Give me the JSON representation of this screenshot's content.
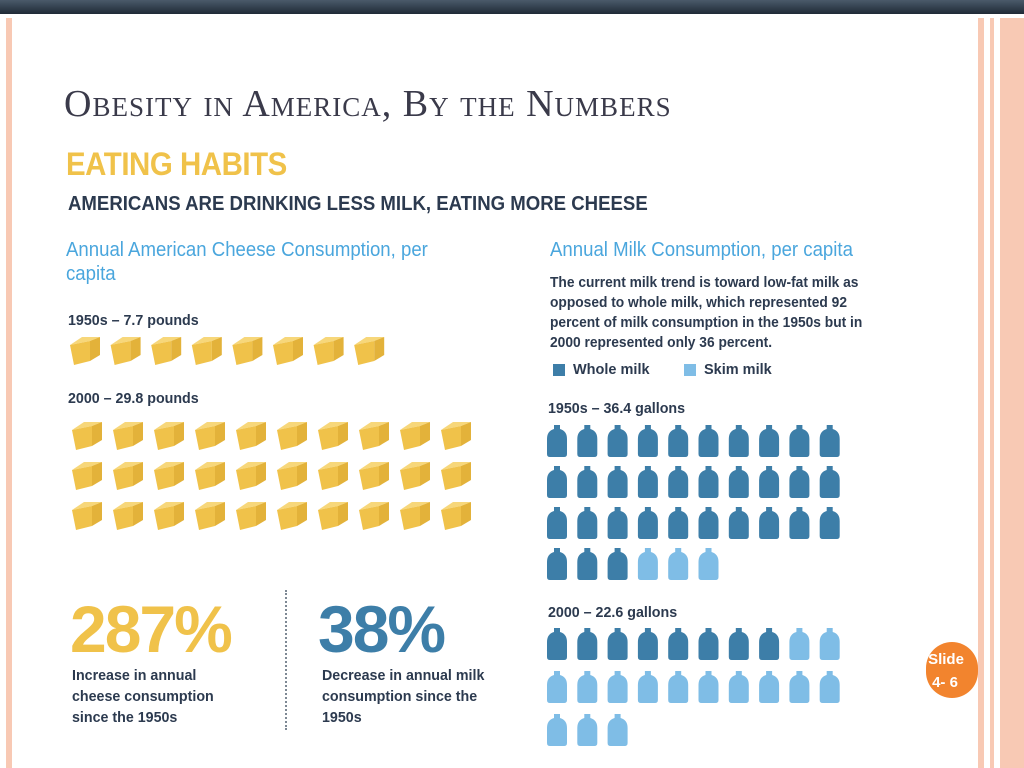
{
  "slide": {
    "title": "Obesity in America, By the Numbers",
    "badge_line1": "Slide",
    "badge_line2": "4- 6"
  },
  "infographic": {
    "heading": "EATING HABITS",
    "subheading": "AMERICANS ARE DRINKING LESS MILK, EATING MORE CHEESE",
    "cheese": {
      "title": "Annual American Cheese Consumption, per capita",
      "period_1950s": "1950s – 7.7 pounds",
      "period_2000": "2000 – 29.8 pounds"
    },
    "milk": {
      "title": "Annual Milk Consumption, per capita",
      "description": "The current milk trend is toward low-fat milk as opposed to whole milk, which represented 92 percent of milk consumption in the 1950s but in 2000 represented only 36 percent.",
      "legend_whole": "Whole milk",
      "legend_skim": "Skim milk",
      "period_1950s": "1950s – 36.4 gallons",
      "period_2000": "2000 – 22.6 gallons"
    },
    "stats": {
      "cheese_value": "287%",
      "cheese_desc": "Increase in annual cheese consumption since the 1950s",
      "milk_value": "38%",
      "milk_desc": "Decrease in annual milk consumption since the 1950s"
    }
  },
  "colors": {
    "cheese": "#f0c24a",
    "whole_milk": "#3d7ea8",
    "skim_milk": "#7fbde6",
    "text_dark": "#2c3a4f",
    "accent_blue": "#4aa6dd"
  },
  "chart_data": [
    {
      "type": "pictograph",
      "title": "Annual American Cheese Consumption, per capita",
      "unit": "pounds",
      "categories": [
        "1950s",
        "2000"
      ],
      "values": [
        7.7,
        29.8
      ],
      "icon": "cheese-wedge-icon",
      "icon_counts": [
        8,
        30
      ]
    },
    {
      "type": "pictograph",
      "title": "Annual Milk Consumption, per capita",
      "unit": "gallons",
      "categories": [
        "1950s",
        "2000"
      ],
      "values": [
        36.4,
        22.6
      ],
      "series": [
        {
          "name": "Whole milk",
          "icon_counts": [
            33,
            8
          ]
        },
        {
          "name": "Skim milk",
          "icon_counts": [
            3,
            15
          ]
        }
      ],
      "icon": "milk-jug-icon"
    }
  ]
}
